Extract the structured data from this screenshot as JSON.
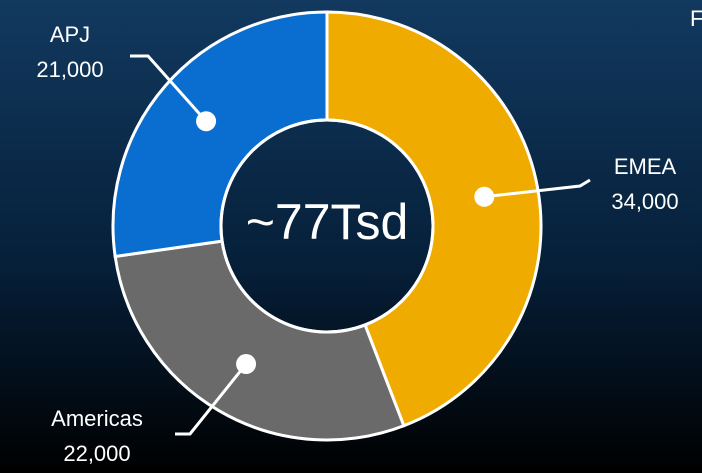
{
  "chart_data": {
    "type": "donut",
    "center_label": "~77Tsd",
    "annotation": "F",
    "categories": [
      "EMEA",
      "Americas",
      "APJ"
    ],
    "values": [
      34000,
      22000,
      21000
    ],
    "value_labels": [
      "34,000",
      "22,000",
      "21,000"
    ],
    "colors": [
      "#f0ab00",
      "#6a6a6a",
      "#0a6ed1"
    ]
  }
}
